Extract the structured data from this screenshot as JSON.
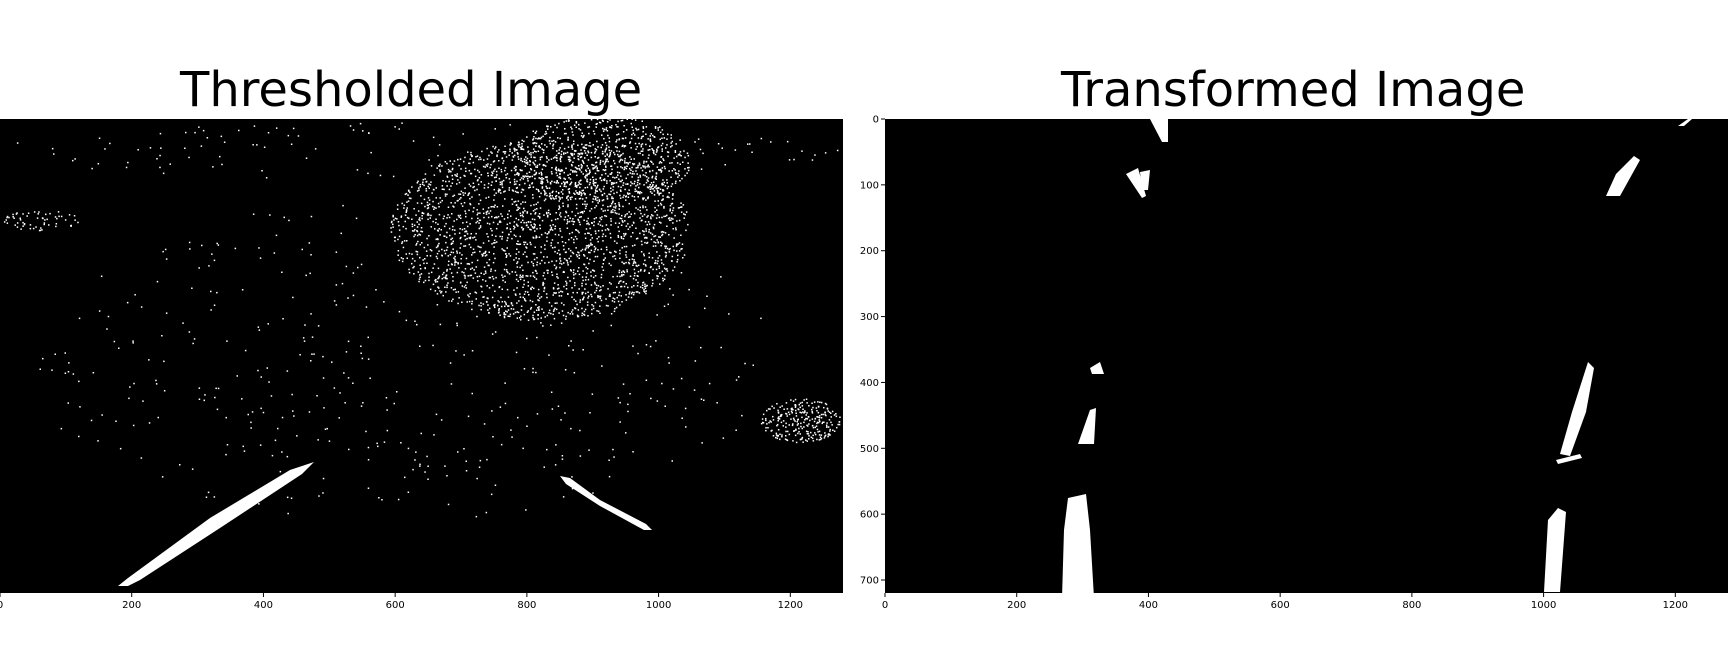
{
  "panels": [
    {
      "title": "Thresholded Image",
      "x_ticks": [
        "0",
        "200",
        "400",
        "600",
        "800",
        "1000",
        "1200"
      ],
      "y_ticks": []
    },
    {
      "title": "Transformed Image",
      "x_ticks": [
        "0",
        "200",
        "400",
        "600",
        "800",
        "1000",
        "1200"
      ],
      "y_ticks": [
        "0",
        "100",
        "200",
        "300",
        "400",
        "500",
        "600",
        "700"
      ]
    }
  ],
  "colors": {
    "background": "#000000",
    "foreground": "#ffffff"
  }
}
